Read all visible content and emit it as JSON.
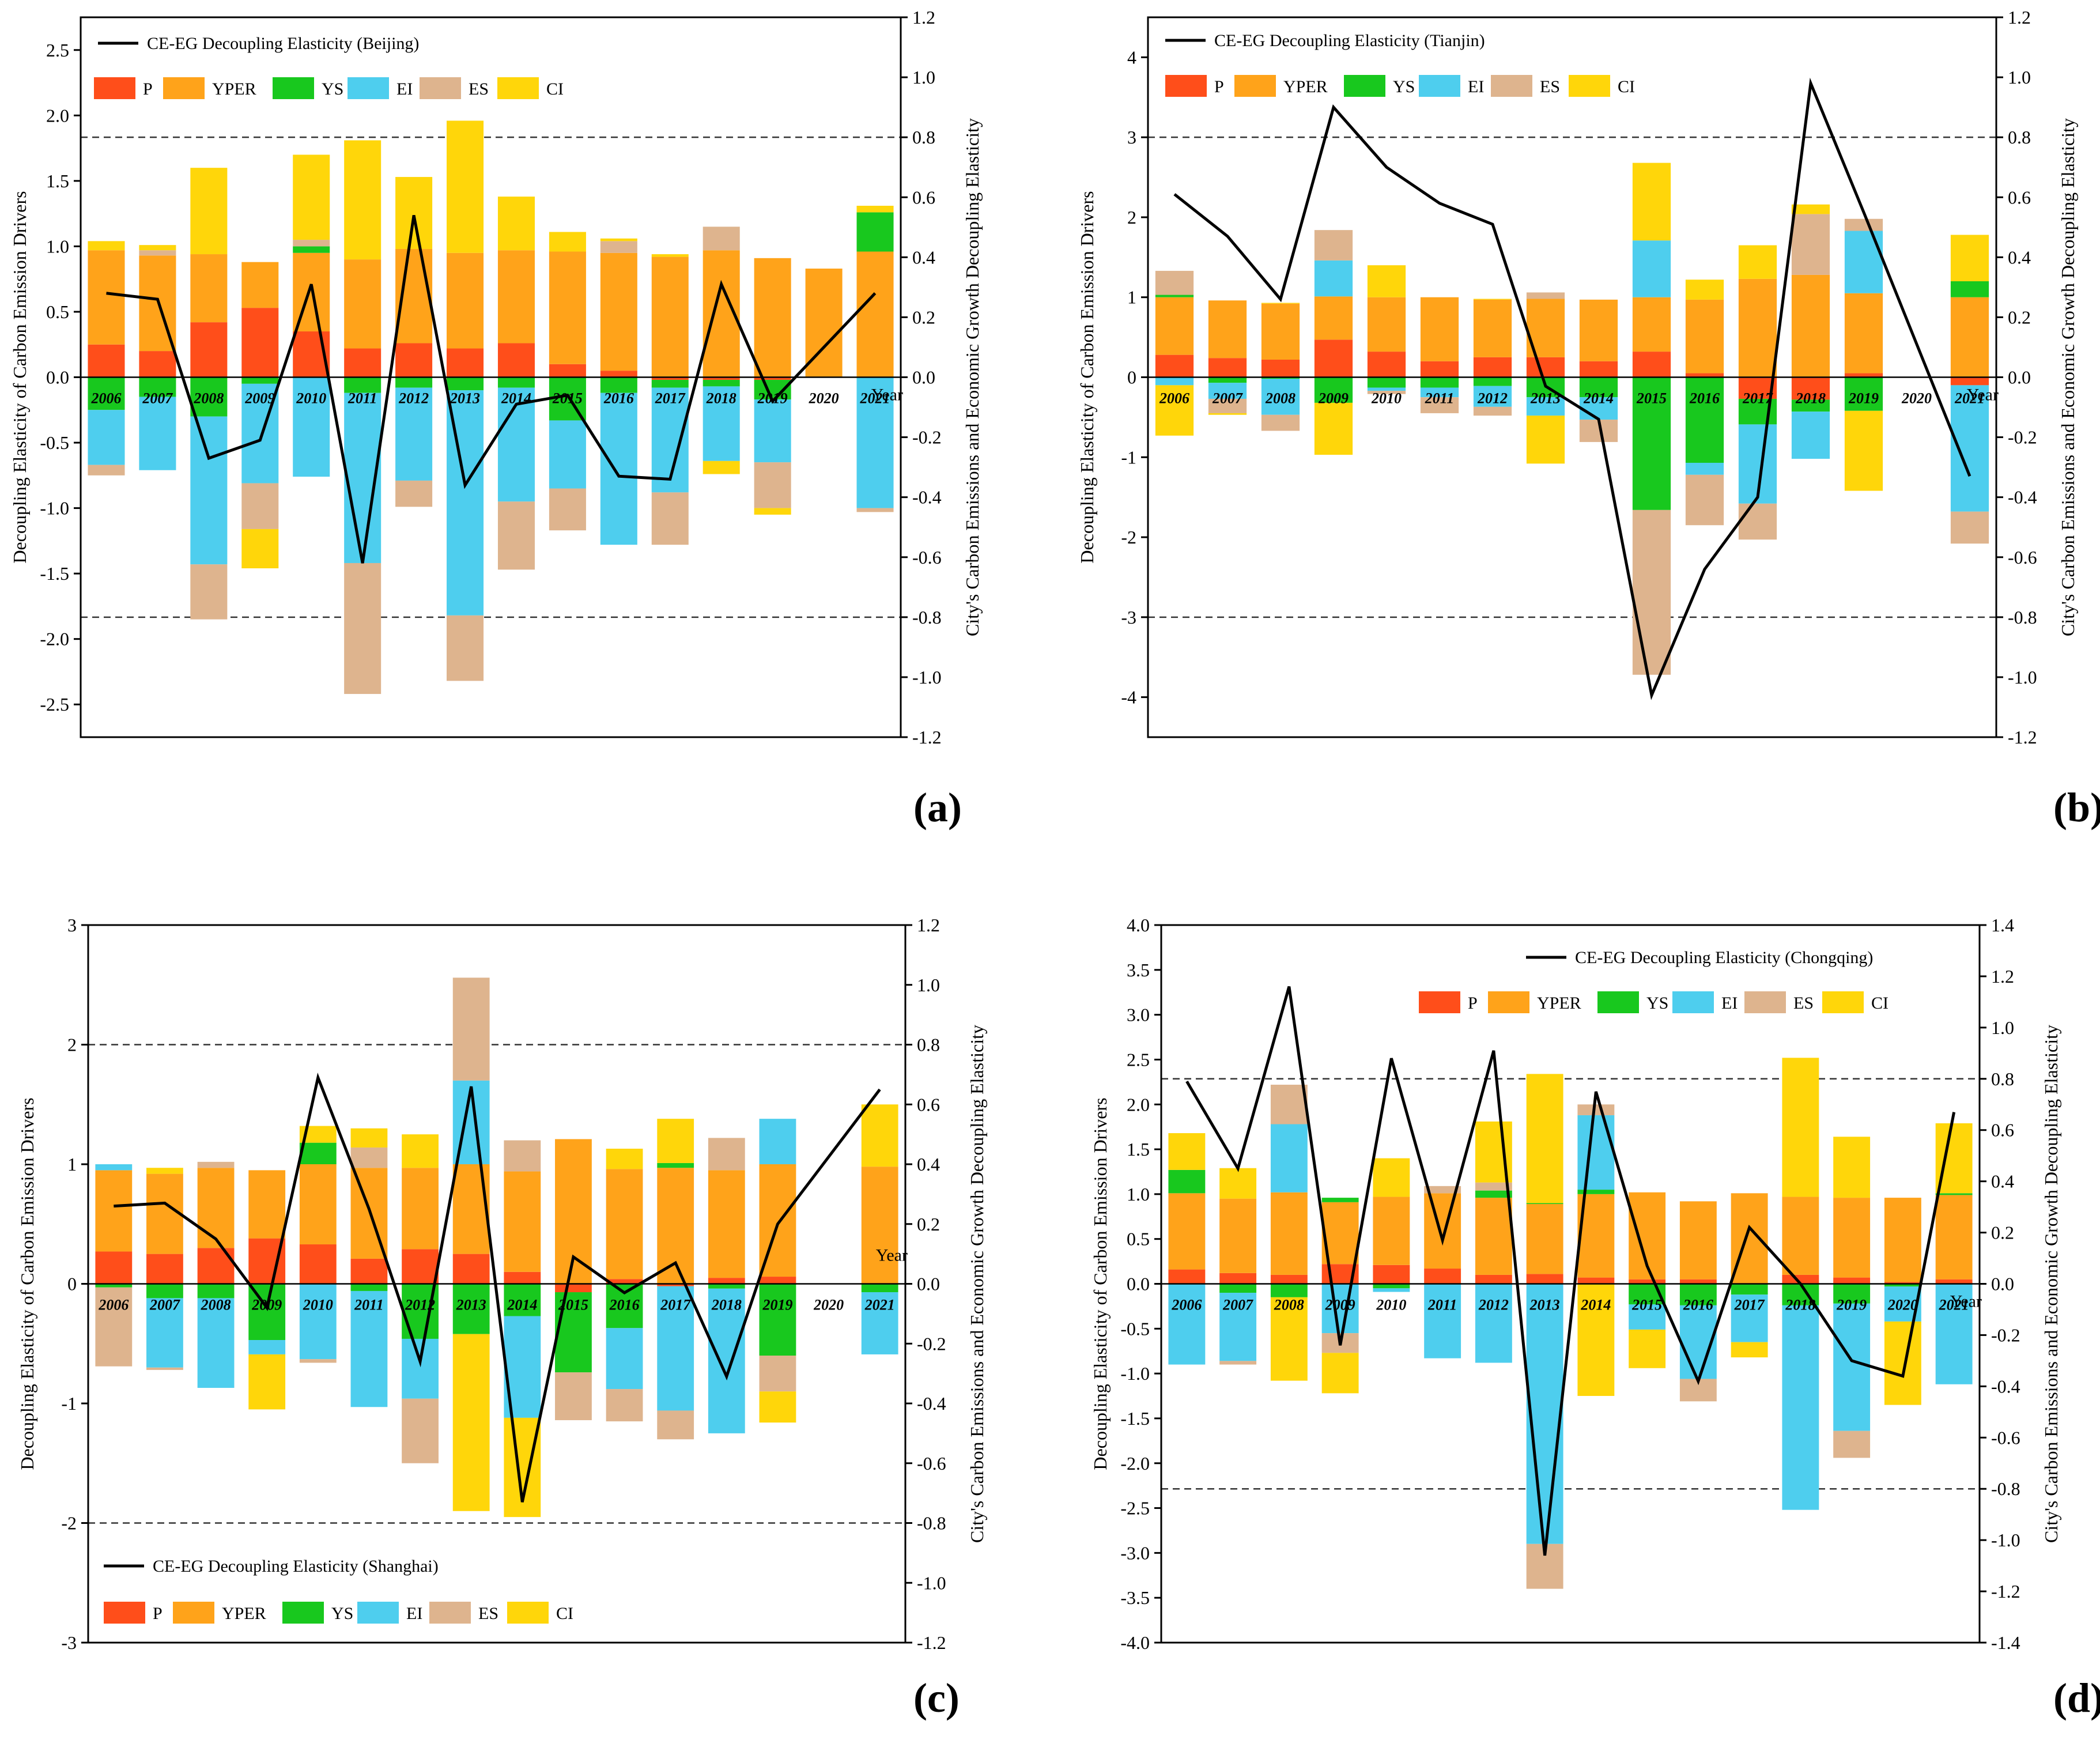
{
  "figure": {
    "panel_labels": [
      "(a)",
      "(b)",
      "(c)",
      "(d)"
    ]
  },
  "colors": {
    "P": "#FF4E1A",
    "YPER": "#FFA31A",
    "YS": "#18C81E",
    "EI": "#4ECEEE",
    "ES": "#DEB48E",
    "CI": "#FFD60A",
    "line": "#000000"
  },
  "chart_data": [
    {
      "type": "bar",
      "panel": "(a)",
      "city": "Beijing",
      "ylabel": "Decoupling Elasticity of Carbon Emission Drivers",
      "y2label": "City's Carbon Emissions and Economic Growth Decoupling Elasticity",
      "xlabel": "Year",
      "ylim": [
        -2.75,
        2.75
      ],
      "y2lim": [
        -1.2,
        1.2
      ],
      "yticks": [
        "-2.5",
        "-2.0",
        "-1.5",
        "-1.0",
        "-0.5",
        "0.0",
        "0.5",
        "1.0",
        "1.5",
        "2.0",
        "2.5"
      ],
      "y2ticks": [
        "-1.2",
        "-1.0",
        "-0.8",
        "-0.6",
        "-0.4",
        "-0.2",
        "0.0",
        "0.2",
        "0.4",
        "0.6",
        "0.8",
        "1.0",
        "1.2"
      ],
      "threshold_lines": [
        -0.8,
        0.8
      ],
      "legend_line": "CE-EG Decoupling Elasticity (Beijing)",
      "legend_items": [
        "P",
        "YPER",
        "YS",
        "EI",
        "ES",
        "CI"
      ],
      "categories": [
        "2006",
        "2007",
        "2008",
        "2009",
        "2010",
        "2011",
        "2012",
        "2013",
        "2014",
        "2015",
        "2016",
        "2017",
        "2018",
        "2019",
        "2020",
        "2021"
      ],
      "series": [
        {
          "name": "P",
          "values": [
            0.25,
            0.2,
            0.42,
            0.53,
            0.35,
            0.22,
            0.26,
            0.22,
            0.26,
            0.1,
            0.05,
            -0.02,
            -0.02,
            -0.02,
            0,
            0
          ]
        },
        {
          "name": "YPER",
          "values": [
            0.72,
            0.73,
            0.52,
            0.35,
            0.6,
            0.68,
            0.72,
            0.73,
            0.71,
            0.86,
            0.9,
            0.92,
            0.97,
            0.91,
            0.83,
            0.96
          ]
        },
        {
          "name": "YS",
          "values": [
            -0.25,
            -0.15,
            -0.3,
            -0.05,
            0.05,
            -0.12,
            -0.08,
            -0.1,
            -0.08,
            -0.33,
            -0.12,
            -0.06,
            -0.05,
            -0.15,
            0,
            0.3
          ]
        },
        {
          "name": "EI",
          "values": [
            -0.42,
            -0.56,
            -1.13,
            -0.76,
            -0.76,
            -1.3,
            -0.71,
            -1.72,
            -0.87,
            -0.52,
            -1.16,
            -0.8,
            -0.57,
            -0.48,
            0,
            -1.0
          ]
        },
        {
          "name": "ES",
          "values": [
            -0.08,
            0.04,
            -0.42,
            -0.35,
            0.05,
            -1.0,
            -0.2,
            -0.5,
            -0.52,
            -0.32,
            0.09,
            -0.4,
            0.18,
            -0.35,
            0,
            -0.03
          ]
        },
        {
          "name": "CI",
          "values": [
            0.07,
            0.04,
            0.66,
            -0.3,
            0.65,
            0.91,
            0.55,
            1.01,
            0.41,
            0.15,
            0.02,
            0.02,
            -0.1,
            -0.05,
            0,
            0.05
          ]
        }
      ],
      "line": {
        "name": "CE-EG Decoupling Elasticity (Beijing)",
        "values": [
          0.28,
          0.26,
          -0.27,
          -0.21,
          0.31,
          -0.62,
          0.54,
          -0.36,
          -0.09,
          -0.06,
          -0.33,
          -0.34,
          0.31,
          -0.08,
          null,
          0.28
        ]
      }
    },
    {
      "type": "bar",
      "panel": "(b)",
      "city": "Tianjin",
      "ylabel": "Decoupling Elasticity of Carbon Emission Drivers",
      "y2label": "City's Carbon Emissions and Economic Growth Decoupling Elasticity",
      "xlabel": "Year",
      "ylim": [
        -4.5,
        4.5
      ],
      "y2lim": [
        -1.2,
        1.2
      ],
      "yticks": [
        "-4",
        "-3",
        "-2",
        "-1",
        "0",
        "1",
        "2",
        "3",
        "4"
      ],
      "y2ticks": [
        "-1.2",
        "-1.0",
        "-0.8",
        "-0.6",
        "-0.4",
        "-0.2",
        "0.0",
        "0.2",
        "0.4",
        "0.6",
        "0.8",
        "1.0",
        "1.2"
      ],
      "threshold_lines": [
        -0.8,
        0.8
      ],
      "legend_line": "CE-EG Decoupling Elasticity (Tianjin)",
      "legend_items": [
        "P",
        "YPER",
        "YS",
        "EI",
        "ES",
        "CI"
      ],
      "categories": [
        "2006",
        "2007",
        "2008",
        "2009",
        "2010",
        "2011",
        "2012",
        "2013",
        "2014",
        "2015",
        "2016",
        "2017",
        "2018",
        "2019",
        "2020",
        "2021"
      ],
      "series": [
        {
          "name": "P",
          "values": [
            0.28,
            0.24,
            0.22,
            0.47,
            0.32,
            0.2,
            0.25,
            0.25,
            0.2,
            0.32,
            0.05,
            -0.27,
            -0.28,
            0.05,
            0,
            -0.1
          ]
        },
        {
          "name": "YPER",
          "values": [
            0.72,
            0.72,
            0.7,
            0.54,
            0.68,
            0.8,
            0.72,
            0.73,
            0.77,
            0.68,
            0.92,
            1.23,
            1.28,
            1.0,
            0,
            1.0
          ]
        },
        {
          "name": "YS",
          "values": [
            0.03,
            -0.07,
            -0.02,
            -0.32,
            -0.13,
            -0.13,
            -0.11,
            -0.25,
            -0.25,
            -1.66,
            -1.07,
            -0.32,
            -0.15,
            -0.42,
            0,
            0.2
          ]
        },
        {
          "name": "EI",
          "values": [
            -0.1,
            -0.2,
            -0.45,
            0.45,
            -0.04,
            -0.12,
            -0.26,
            -0.23,
            -0.28,
            0.71,
            -0.15,
            -0.99,
            -0.59,
            0.78,
            0,
            -1.58
          ]
        },
        {
          "name": "ES",
          "values": [
            0.3,
            -0.18,
            -0.2,
            0.38,
            -0.04,
            -0.2,
            -0.11,
            0.08,
            -0.28,
            -2.06,
            -0.63,
            -0.45,
            0.76,
            0.15,
            0,
            -0.4
          ]
        },
        {
          "name": "CI",
          "values": [
            -0.63,
            -0.02,
            0.01,
            -0.65,
            0.4,
            0.0,
            0.01,
            -0.6,
            0.0,
            0.97,
            0.25,
            0.42,
            0.12,
            -1.0,
            0,
            0.58
          ]
        }
      ],
      "line": {
        "name": "CE-EG Decoupling Elasticity (Tianjin)",
        "values": [
          0.61,
          0.47,
          0.26,
          0.9,
          0.7,
          0.58,
          0.51,
          -0.03,
          -0.14,
          -1.06,
          -0.64,
          -0.4,
          0.98,
          0.55,
          null,
          -0.33
        ]
      }
    },
    {
      "type": "bar",
      "panel": "(c)",
      "city": "Shanghai",
      "ylabel": "Decoupling Elasticity of Carbon Emission Drivers",
      "y2label": "City's Carbon Emissions and Economic Growth Decoupling Elasticity",
      "xlabel": "Year",
      "ylim": [
        -3,
        3
      ],
      "y2lim": [
        -1.2,
        1.2
      ],
      "yticks": [
        "-3",
        "-2",
        "-1",
        "0",
        "1",
        "2",
        "3"
      ],
      "y2ticks": [
        "-1.2",
        "-1.0",
        "-0.8",
        "-0.6",
        "-0.4",
        "-0.2",
        "0.0",
        "0.2",
        "0.4",
        "0.6",
        "0.8",
        "1.0",
        "1.2"
      ],
      "threshold_lines": [
        -0.8,
        0.8
      ],
      "legend_line": "CE-EG Decoupling Elasticity (Shanghai)",
      "legend_items": [
        "P",
        "YPER",
        "YS",
        "EI",
        "ES",
        "CI"
      ],
      "categories": [
        "2006",
        "2007",
        "2008",
        "2009",
        "2010",
        "2011",
        "2012",
        "2013",
        "2014",
        "2015",
        "2016",
        "2017",
        "2018",
        "2019",
        "2020",
        "2021"
      ],
      "series": [
        {
          "name": "P",
          "values": [
            0.27,
            0.25,
            0.3,
            0.38,
            0.33,
            0.21,
            0.29,
            0.25,
            0.1,
            -0.07,
            0.04,
            -0.02,
            0.05,
            0.06,
            0,
            0
          ]
        },
        {
          "name": "YPER",
          "values": [
            0.68,
            0.67,
            0.67,
            0.57,
            0.67,
            0.76,
            0.68,
            0.75,
            0.84,
            1.21,
            0.92,
            0.97,
            0.9,
            0.94,
            0,
            0.98
          ]
        },
        {
          "name": "YS",
          "values": [
            -0.03,
            -0.12,
            -0.12,
            -0.47,
            0.18,
            -0.06,
            -0.46,
            -0.42,
            -0.27,
            -0.67,
            -0.37,
            0.04,
            -0.04,
            -0.6,
            0,
            -0.07
          ]
        },
        {
          "name": "EI",
          "values": [
            0.05,
            -0.58,
            -0.75,
            -0.12,
            -0.63,
            -0.97,
            -0.5,
            0.7,
            -0.85,
            0.0,
            -0.51,
            -1.04,
            -1.21,
            0.38,
            0,
            -0.52
          ]
        },
        {
          "name": "ES",
          "values": [
            -0.66,
            -0.02,
            0.05,
            0.0,
            -0.03,
            0.17,
            -0.54,
            0.86,
            0.26,
            -0.4,
            -0.27,
            -0.24,
            0.27,
            -0.3,
            0,
            0.0
          ]
        },
        {
          "name": "CI",
          "values": [
            0.0,
            0.05,
            0.0,
            -0.46,
            0.14,
            0.16,
            0.28,
            -1.48,
            -0.83,
            0.0,
            0.17,
            0.37,
            0.0,
            -0.26,
            0,
            0.52
          ]
        }
      ],
      "line": {
        "name": "CE-EG Decoupling Elasticity (Shanghai)",
        "values": [
          0.26,
          0.27,
          0.15,
          -0.08,
          0.69,
          0.25,
          -0.26,
          0.66,
          -0.73,
          0.09,
          -0.03,
          0.07,
          -0.31,
          0.2,
          null,
          0.65
        ]
      }
    },
    {
      "type": "bar",
      "panel": "(d)",
      "city": "Chongqing",
      "ylabel": "Decoupling Elasticity of Carbon Emission Drivers",
      "y2label": "City's Carbon Emissions and Economic Growth Decoupling Elasticity",
      "xlabel": "Year",
      "ylim": [
        -4.0,
        4.0
      ],
      "y2lim": [
        -1.4,
        1.4
      ],
      "yticks": [
        "-4.0",
        "-3.5",
        "-3.0",
        "-2.5",
        "-2.0",
        "-1.5",
        "-1.0",
        "-0.5",
        "0.0",
        "0.5",
        "1.0",
        "1.5",
        "2.0",
        "2.5",
        "3.0",
        "3.5",
        "4.0"
      ],
      "y2ticks": [
        "-1.4",
        "-1.2",
        "-1.0",
        "-0.8",
        "-0.6",
        "-0.4",
        "-0.2",
        "0.0",
        "0.2",
        "0.4",
        "0.6",
        "0.8",
        "1.0",
        "1.2",
        "1.4"
      ],
      "threshold_lines": [
        -0.8,
        0.8
      ],
      "legend_line": "CE-EG Decoupling Elasticity (Chongqing)",
      "legend_items": [
        "P",
        "YPER",
        "YS",
        "EI",
        "ES",
        "CI"
      ],
      "categories": [
        "2006",
        "2007",
        "2008",
        "2009",
        "2010",
        "2011",
        "2012",
        "2013",
        "2014",
        "2015",
        "2016",
        "2017",
        "2018",
        "2019",
        "2020",
        "2021"
      ],
      "series": [
        {
          "name": "P",
          "values": [
            0.16,
            0.12,
            0.1,
            0.22,
            0.21,
            0.17,
            0.1,
            0.11,
            0.07,
            0.05,
            0.05,
            0.0,
            0.1,
            0.07,
            0.02,
            0.05
          ]
        },
        {
          "name": "YPER",
          "values": [
            0.85,
            0.83,
            0.92,
            0.69,
            0.76,
            0.84,
            0.86,
            0.78,
            0.93,
            0.97,
            0.87,
            1.01,
            0.87,
            0.89,
            0.94,
            0.94
          ]
        },
        {
          "name": "YS",
          "values": [
            0.26,
            -0.1,
            -0.15,
            0.05,
            -0.05,
            0.0,
            0.08,
            0.01,
            0.05,
            -0.23,
            -0.24,
            -0.12,
            -0.24,
            -0.22,
            -0.03,
            0.02
          ]
        },
        {
          "name": "EI",
          "values": [
            -0.9,
            -0.76,
            0.76,
            -0.55,
            -0.04,
            -0.83,
            -0.88,
            -2.9,
            0.83,
            -0.28,
            -0.82,
            -0.53,
            -2.28,
            -1.42,
            -0.39,
            -1.12
          ]
        },
        {
          "name": "ES",
          "values": [
            0.0,
            -0.04,
            0.44,
            -0.22,
            0.0,
            0.08,
            0.09,
            -0.5,
            0.12,
            0.0,
            -0.25,
            0.0,
            0.0,
            -0.3,
            0.0,
            0.0
          ]
        },
        {
          "name": "CI",
          "values": [
            0.41,
            0.34,
            -0.93,
            -0.45,
            0.43,
            0.0,
            0.68,
            1.44,
            -1.25,
            -0.43,
            0.0,
            -0.17,
            1.55,
            0.68,
            -0.93,
            0.78
          ]
        }
      ],
      "line": {
        "name": "CE-EG Decoupling Elasticity (Chongqing)",
        "values": [
          0.79,
          0.45,
          1.16,
          -0.24,
          0.88,
          0.17,
          0.91,
          -1.06,
          0.75,
          0.07,
          -0.38,
          0.22,
          0.0,
          -0.3,
          -0.36,
          0.67
        ]
      }
    }
  ]
}
